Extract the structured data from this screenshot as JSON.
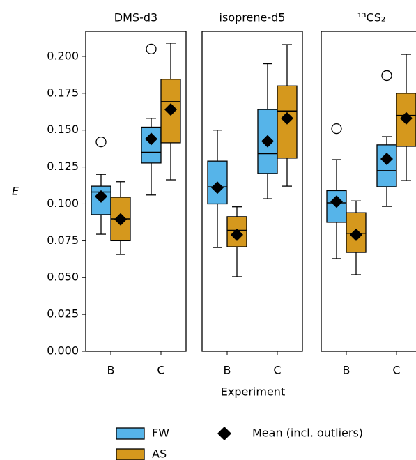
{
  "chart_data": {
    "type": "box",
    "ylabel": "E",
    "xlabel": "Experiment",
    "ylim": [
      0,
      0.217
    ],
    "yticks": [
      {
        "value": 0,
        "label": "0.000"
      },
      {
        "value": 0.025,
        "label": "0.025"
      },
      {
        "value": 0.05,
        "label": "0.050"
      },
      {
        "value": 0.075,
        "label": "0.075"
      },
      {
        "value": 0.1,
        "label": "0.100"
      },
      {
        "value": 0.125,
        "label": "0.125"
      },
      {
        "value": 0.15,
        "label": "0.150"
      },
      {
        "value": 0.175,
        "label": "0.175"
      },
      {
        "value": 0.2,
        "label": "0.200"
      }
    ],
    "categories": [
      "B",
      "C"
    ],
    "series": [
      {
        "name": "FW",
        "color": "#56b4e9"
      },
      {
        "name": "AS",
        "color": "#d5981d"
      }
    ],
    "mean_label": "Mean (incl. outliers)",
    "panels": [
      {
        "title": "DMS-d3",
        "series": [
          {
            "boxes": [
              {
                "low": 0.0794,
                "q1": 0.0927,
                "median": 0.108,
                "q3": 0.112,
                "high": 0.12,
                "mean": 0.105,
                "outliers": [
                  0.142
                ]
              },
              {
                "low": 0.106,
                "q1": 0.1277,
                "median": 0.135,
                "q3": 0.152,
                "high": 0.158,
                "mean": 0.144,
                "outliers": [
                  0.205
                ]
              }
            ]
          },
          {
            "boxes": [
              {
                "low": 0.0657,
                "q1": 0.075,
                "median": 0.0898,
                "q3": 0.1045,
                "high": 0.115,
                "mean": 0.0895,
                "outliers": []
              },
              {
                "low": 0.1163,
                "q1": 0.1414,
                "median": 0.1693,
                "q3": 0.1845,
                "high": 0.209,
                "mean": 0.164,
                "outliers": []
              }
            ]
          }
        ]
      },
      {
        "title": "isoprene-d5",
        "series": [
          {
            "boxes": [
              {
                "low": 0.0704,
                "q1": 0.1,
                "median": 0.1115,
                "q3": 0.129,
                "high": 0.15,
                "mean": 0.111,
                "outliers": []
              },
              {
                "low": 0.1035,
                "q1": 0.1206,
                "median": 0.134,
                "q3": 0.164,
                "high": 0.195,
                "mean": 0.1425,
                "outliers": []
              }
            ]
          },
          {
            "boxes": [
              {
                "low": 0.0506,
                "q1": 0.0709,
                "median": 0.082,
                "q3": 0.0913,
                "high": 0.098,
                "mean": 0.079,
                "outliers": []
              },
              {
                "low": 0.112,
                "q1": 0.131,
                "median": 0.163,
                "q3": 0.18,
                "high": 0.208,
                "mean": 0.158,
                "outliers": []
              }
            ]
          }
        ]
      },
      {
        "title": "¹³CS₂",
        "series": [
          {
            "boxes": [
              {
                "low": 0.0629,
                "q1": 0.0875,
                "median": 0.1007,
                "q3": 0.109,
                "high": 0.13,
                "mean": 0.1015,
                "outliers": [
                  0.151
                ]
              },
              {
                "low": 0.0983,
                "q1": 0.1116,
                "median": 0.1225,
                "q3": 0.14,
                "high": 0.1456,
                "mean": 0.1305,
                "outliers": [
                  0.187
                ]
              }
            ]
          },
          {
            "boxes": [
              {
                "low": 0.052,
                "q1": 0.0671,
                "median": 0.08,
                "q3": 0.094,
                "high": 0.102,
                "mean": 0.079,
                "outliers": []
              },
              {
                "low": 0.1158,
                "q1": 0.139,
                "median": 0.16,
                "q3": 0.175,
                "high": 0.2014,
                "mean": 0.158,
                "outliers": []
              }
            ]
          }
        ]
      }
    ]
  }
}
